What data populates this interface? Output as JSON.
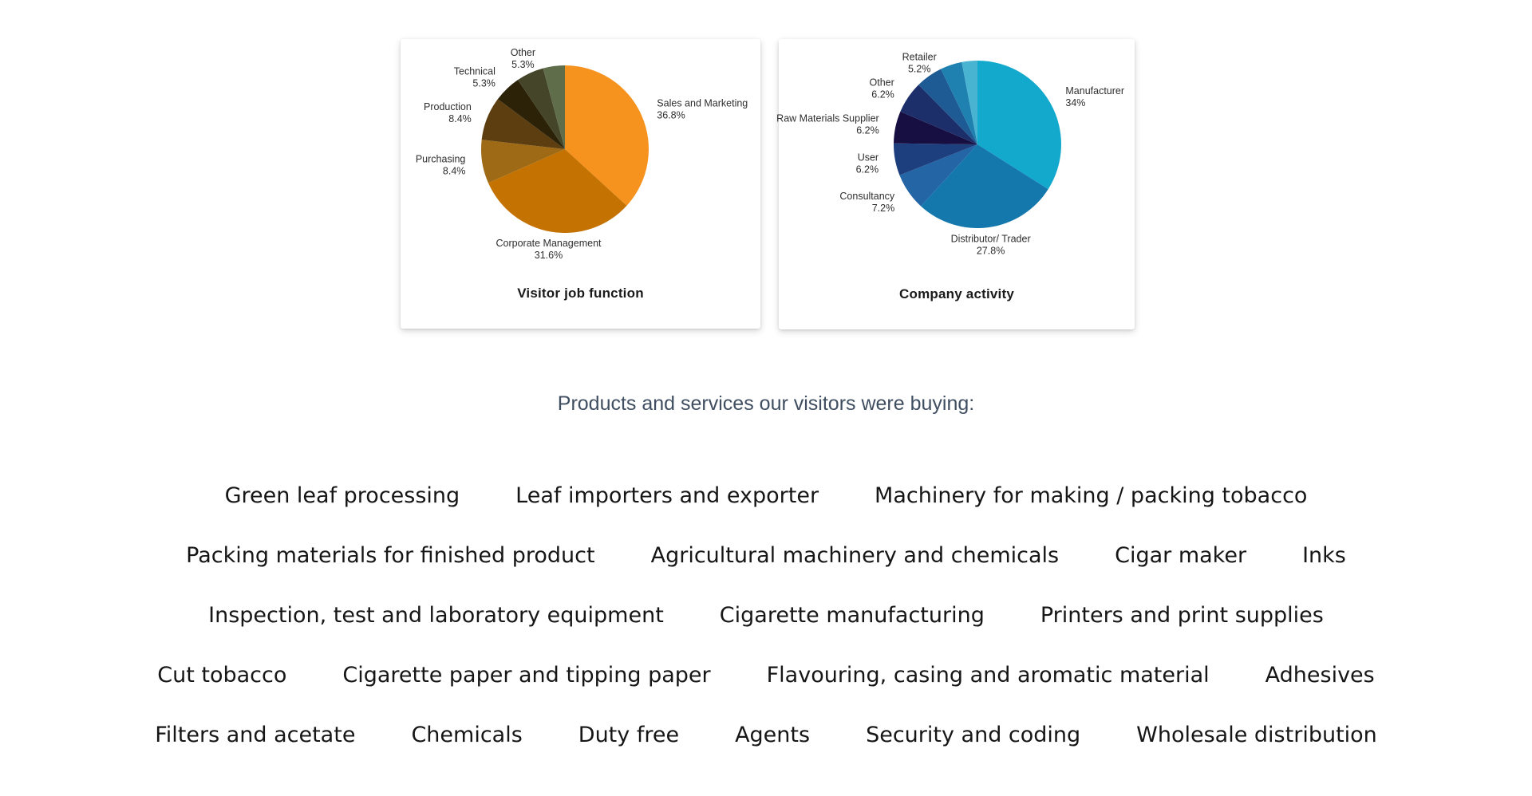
{
  "chart_data": [
    {
      "type": "pie",
      "title": "Visitor job function",
      "direction": "clockwise",
      "start_angle": "12-oclock",
      "labels_position": "outside",
      "legend": "none",
      "slices": [
        {
          "label": "Sales and Marketing",
          "pct": 36.8,
          "pct_label": "36.8%",
          "color": "#F6921E"
        },
        {
          "label": "Corporate Management",
          "pct": 31.6,
          "pct_label": "31.6%",
          "color": "#C47201"
        },
        {
          "label": "Purchasing",
          "pct": 8.4,
          "pct_label": "8.4%",
          "color": "#9E6A16"
        },
        {
          "label": "Production",
          "pct": 8.4,
          "pct_label": "8.4%",
          "color": "#5C3E10"
        },
        {
          "label": "Technical",
          "pct": 5.3,
          "pct_label": "5.3%",
          "color": "#2B2208"
        },
        {
          "label": "Other",
          "pct": 5.3,
          "pct_label": "5.3%",
          "color": "#45452A"
        },
        {
          "label": "",
          "pct": 4.2,
          "pct_label": "",
          "color": "#5F6D4B"
        }
      ]
    },
    {
      "type": "pie",
      "title": "Company activity",
      "direction": "clockwise",
      "start_angle": "12-oclock",
      "labels_position": "outside",
      "legend": "none",
      "slices": [
        {
          "label": "Manufacturer",
          "pct": 34.0,
          "pct_label": "34%",
          "color": "#13A9CC"
        },
        {
          "label": "Distributor/ Trader",
          "pct": 27.8,
          "pct_label": "27.8%",
          "color": "#1478AC"
        },
        {
          "label": "Consultancy",
          "pct": 7.2,
          "pct_label": "7.2%",
          "color": "#2365A5"
        },
        {
          "label": "User",
          "pct": 6.2,
          "pct_label": "6.2%",
          "color": "#1D3F7D"
        },
        {
          "label": "Raw Materials Supplier",
          "pct": 6.2,
          "pct_label": "6.2%",
          "color": "#170E42"
        },
        {
          "label": "Other",
          "pct": 6.2,
          "pct_label": "6.2%",
          "color": "#1D2F6B"
        },
        {
          "label": "Retailer",
          "pct": 5.2,
          "pct_label": "5.2%",
          "color": "#1E5B94"
        },
        {
          "label": "",
          "pct": 4.2,
          "pct_label": "",
          "color": "#1F81B0"
        },
        {
          "label": "",
          "pct": 3.0,
          "pct_label": "",
          "color": "#49B4D2"
        }
      ]
    }
  ],
  "heading": {
    "text": "Products and services our visitors were buying:",
    "color": "#3f4e60"
  },
  "product_rows": [
    [
      "Green leaf processing",
      "Leaf importers and exporter",
      "Machinery for making / packing tobacco"
    ],
    [
      "Packing materials for finished product",
      "Agricultural machinery and chemicals",
      "Cigar maker",
      "Inks"
    ],
    [
      "Inspection, test and laboratory equipment",
      "Cigarette manufacturing",
      "Printers and print supplies"
    ],
    [
      "Cut tobacco",
      "Cigarette paper and tipping paper",
      "Flavouring, casing and aromatic material",
      "Adhesives"
    ],
    [
      "Filters and acetate",
      "Chemicals",
      "Duty free",
      "Agents",
      "Security and coding",
      "Wholesale distribution"
    ]
  ]
}
